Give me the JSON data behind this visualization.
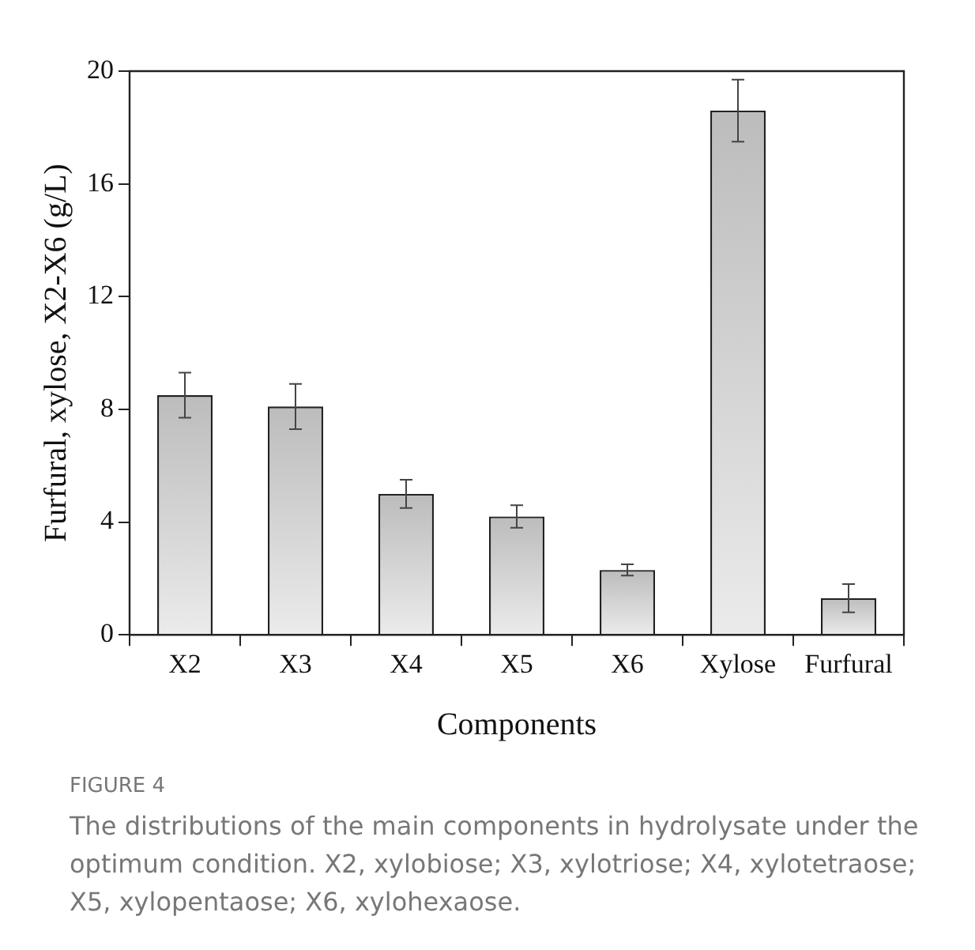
{
  "chart_data": {
    "type": "bar",
    "xlabel": "Components",
    "ylabel": "Furfural, xylose, X2-X6 (g/L)",
    "categories": [
      "X2",
      "X3",
      "X4",
      "X5",
      "X6",
      "Xylose",
      "Furfural"
    ],
    "values": [
      8.5,
      8.1,
      5.0,
      4.2,
      2.3,
      18.6,
      1.3
    ],
    "errors": [
      0.8,
      0.8,
      0.5,
      0.4,
      0.2,
      1.1,
      0.5
    ],
    "color": "#bcbcbc",
    "ylim": [
      0,
      20
    ],
    "yticks": [
      0,
      4,
      8,
      12,
      16,
      20
    ],
    "grid": false,
    "legend": false,
    "annotations": [
      "FIGURE 4",
      "The distributions of the main components in hydrolysate under the optimum condition. X2, xylobiose; X3, xylotriose; X4, xylotetraose; X5, xylopentaose; X6, xylohexaose."
    ]
  }
}
